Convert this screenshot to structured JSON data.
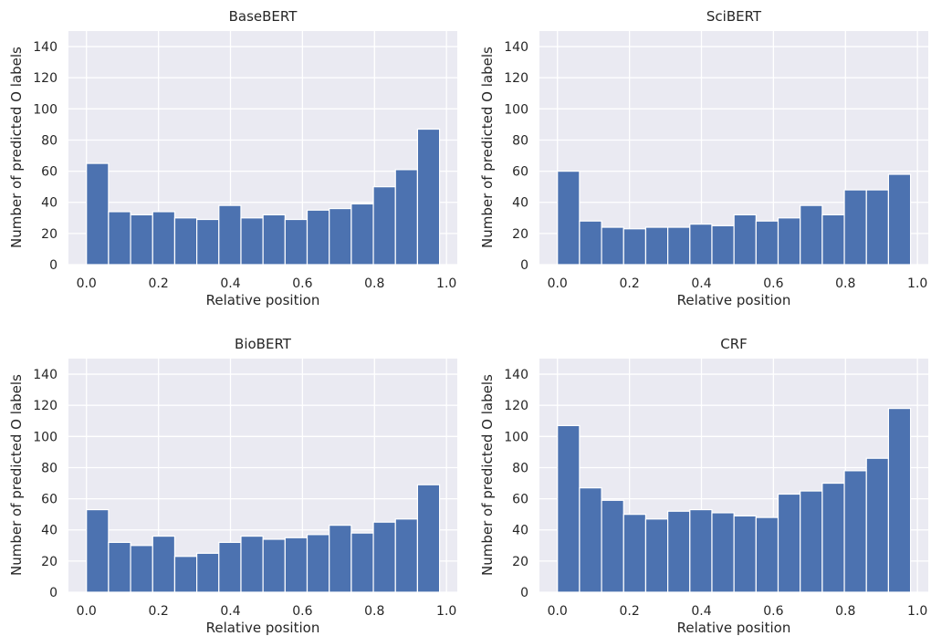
{
  "chart_data": [
    {
      "type": "bar",
      "title": "BaseBERT",
      "xlabel": "Relative position",
      "ylabel": "Number of predicted O labels",
      "xlim": [
        -0.05,
        1.03
      ],
      "ylim": [
        0,
        150
      ],
      "xticks": [
        "0.0",
        "0.2",
        "0.4",
        "0.6",
        "0.8",
        "1.0"
      ],
      "yticks": [
        "0",
        "20",
        "40",
        "60",
        "80",
        "100",
        "120",
        "140"
      ],
      "bin_edges": [
        0,
        0.0613,
        0.1226,
        0.1839,
        0.2452,
        0.3065,
        0.3678,
        0.4291,
        0.4904,
        0.5517,
        0.613,
        0.6743,
        0.7356,
        0.7969,
        0.8582,
        0.9195,
        0.9808
      ],
      "values": [
        65,
        34,
        32,
        34,
        30,
        29,
        38,
        30,
        32,
        29,
        35,
        36,
        39,
        50,
        61,
        87
      ],
      "grid": true,
      "bar_color": "#4c72b0",
      "background": "#eaeaf2"
    },
    {
      "type": "bar",
      "title": "SciBERT",
      "xlabel": "Relative position",
      "ylabel": "Number of predicted O labels",
      "xlim": [
        -0.05,
        1.03
      ],
      "ylim": [
        0,
        150
      ],
      "xticks": [
        "0.0",
        "0.2",
        "0.4",
        "0.6",
        "0.8",
        "1.0"
      ],
      "yticks": [
        "0",
        "20",
        "40",
        "60",
        "80",
        "100",
        "120",
        "140"
      ],
      "bin_edges": [
        0,
        0.0613,
        0.1226,
        0.1839,
        0.2452,
        0.3065,
        0.3678,
        0.4291,
        0.4904,
        0.5517,
        0.613,
        0.6743,
        0.7356,
        0.7969,
        0.8582,
        0.9195,
        0.9808
      ],
      "values": [
        60,
        28,
        24,
        23,
        24,
        24,
        26,
        25,
        32,
        28,
        30,
        38,
        32,
        48,
        48,
        58
      ],
      "grid": true,
      "bar_color": "#4c72b0",
      "background": "#eaeaf2"
    },
    {
      "type": "bar",
      "title": "BioBERT",
      "xlabel": "Relative position",
      "ylabel": "Number of predicted O labels",
      "xlim": [
        -0.05,
        1.03
      ],
      "ylim": [
        0,
        150
      ],
      "xticks": [
        "0.0",
        "0.2",
        "0.4",
        "0.6",
        "0.8",
        "1.0"
      ],
      "yticks": [
        "0",
        "20",
        "40",
        "60",
        "80",
        "100",
        "120",
        "140"
      ],
      "bin_edges": [
        0,
        0.0613,
        0.1226,
        0.1839,
        0.2452,
        0.3065,
        0.3678,
        0.4291,
        0.4904,
        0.5517,
        0.613,
        0.6743,
        0.7356,
        0.7969,
        0.8582,
        0.9195,
        0.9808
      ],
      "values": [
        53,
        32,
        30,
        36,
        23,
        25,
        32,
        36,
        34,
        35,
        37,
        43,
        38,
        45,
        47,
        69
      ],
      "grid": true,
      "bar_color": "#4c72b0",
      "background": "#eaeaf2"
    },
    {
      "type": "bar",
      "title": "CRF",
      "xlabel": "Relative position",
      "ylabel": "Number of predicted O labels",
      "xlim": [
        -0.05,
        1.03
      ],
      "ylim": [
        0,
        150
      ],
      "xticks": [
        "0.0",
        "0.2",
        "0.4",
        "0.6",
        "0.8",
        "1.0"
      ],
      "yticks": [
        "0",
        "20",
        "40",
        "60",
        "80",
        "100",
        "120",
        "140"
      ],
      "bin_edges": [
        0,
        0.0613,
        0.1226,
        0.1839,
        0.2452,
        0.3065,
        0.3678,
        0.4291,
        0.4904,
        0.5517,
        0.613,
        0.6743,
        0.7356,
        0.7969,
        0.8582,
        0.9195,
        0.9808
      ],
      "values": [
        107,
        67,
        59,
        50,
        47,
        52,
        53,
        51,
        49,
        48,
        63,
        65,
        70,
        78,
        86,
        118
      ],
      "grid": true,
      "bar_color": "#4c72b0",
      "background": "#eaeaf2"
    }
  ]
}
